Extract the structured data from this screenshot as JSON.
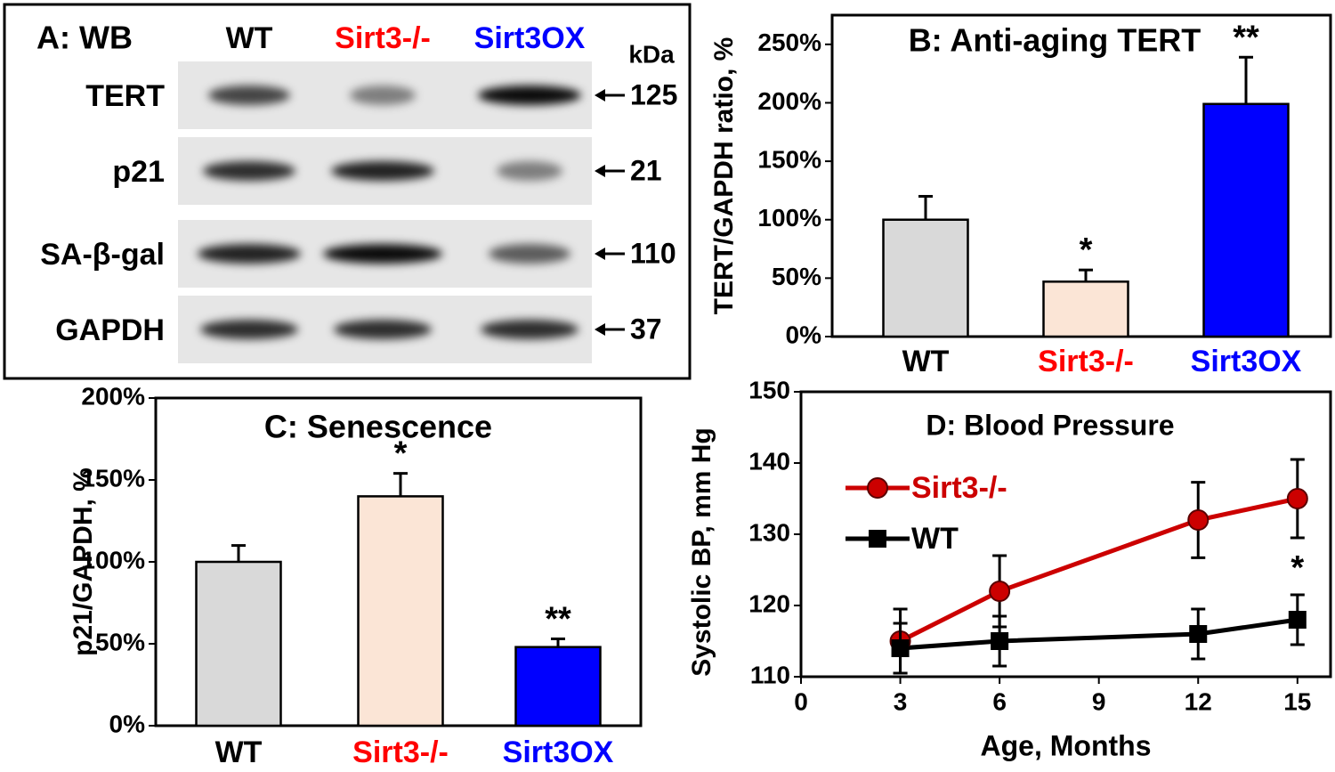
{
  "chart_data": [
    {
      "type": "blot",
      "title": "A: WB",
      "unit": "kDa",
      "lanes": [
        "WT",
        "Sirt3-/-",
        "Sirt3OX"
      ],
      "lane_colors": [
        "#000000",
        "#ff0000",
        "#0000ff"
      ],
      "rows": [
        "TERT",
        "p21",
        "SA-β-gal",
        "GAPDH"
      ],
      "markers": [
        125,
        21,
        110,
        37
      ]
    },
    {
      "type": "bar",
      "title": "B: Anti-aging TERT",
      "y_label": "TERT/GAPDH ratio, %",
      "categories": [
        "WT",
        "Sirt3-/-",
        "Sirt3OX"
      ],
      "category_colors": [
        "#000000",
        "#ff0000",
        "#0000ff"
      ],
      "values": [
        100,
        47,
        199
      ],
      "errors": [
        20,
        10,
        40
      ],
      "colors": [
        "#d9d9d9",
        "#fbe5d6",
        "#0000ff"
      ],
      "annotations": [
        null,
        "*",
        "**"
      ],
      "ylim": [
        0,
        275
      ],
      "yticks": [
        {
          "value": 0,
          "label": "0%"
        },
        {
          "value": 50,
          "label": "50%"
        },
        {
          "value": 100,
          "label": "100%"
        },
        {
          "value": 150,
          "label": "150%"
        },
        {
          "value": 200,
          "label": "200%"
        },
        {
          "value": 250,
          "label": "250%"
        }
      ]
    },
    {
      "type": "bar",
      "title": "C: Senescence",
      "y_label": "p21/GAPDH, %",
      "categories": [
        "WT",
        "Sirt3-/-",
        "Sirt3OX"
      ],
      "category_colors": [
        "#000000",
        "#ff0000",
        "#0000ff"
      ],
      "values": [
        100,
        140,
        48
      ],
      "errors": [
        10,
        14,
        5
      ],
      "colors": [
        "#d9d9d9",
        "#fbe5d6",
        "#0000ff"
      ],
      "annotations": [
        null,
        "*",
        "**"
      ],
      "ylim": [
        0,
        200
      ],
      "yticks": [
        {
          "value": 0,
          "label": "0%"
        },
        {
          "value": 50,
          "label": "50%"
        },
        {
          "value": 100,
          "label": "100%"
        },
        {
          "value": 150,
          "label": "150%"
        },
        {
          "value": 200,
          "label": "200%"
        }
      ]
    },
    {
      "type": "line",
      "title": "D: Blood Pressure",
      "x_label": "Age, Months",
      "y_label": "Systolic BP, mm Hg",
      "x": [
        3,
        6,
        12,
        15
      ],
      "series": [
        {
          "name": "Sirt3-/-",
          "color": "#cc0000",
          "marker": "circle",
          "values": [
            115,
            122,
            132,
            135
          ],
          "errors": [
            4.5,
            5,
            5.3,
            5.5
          ]
        },
        {
          "name": "WT",
          "color": "#000000",
          "marker": "square",
          "values": [
            114,
            115,
            116,
            118
          ],
          "errors": [
            3.5,
            3.5,
            3.5,
            3.5
          ]
        }
      ],
      "annotations": [
        {
          "text": "*",
          "x": 15,
          "y": 126
        }
      ],
      "xlim": [
        0,
        16
      ],
      "xticks": [
        0,
        3,
        6,
        9,
        12,
        15
      ],
      "ylim": [
        110,
        150
      ],
      "yticks": [
        110,
        120,
        130,
        140,
        150
      ]
    }
  ]
}
